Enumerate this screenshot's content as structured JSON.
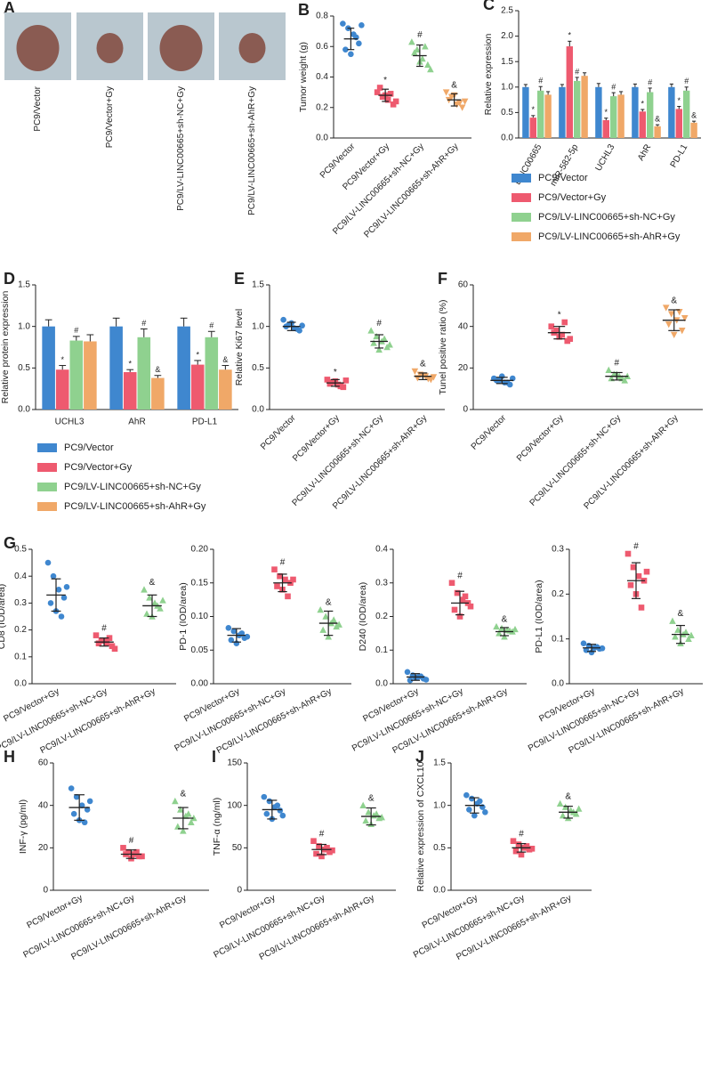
{
  "chart_data": [
    {
      "type": "photo",
      "panel": "A",
      "labels": [
        "PC9/Vector",
        "PC9/Vector+Gy",
        "PC9/LV-LINC00665+sh-NC+Gy",
        "PC9/LV-LINC00665+sh-AhR+Gy"
      ]
    },
    {
      "type": "dotplot",
      "panel": "B",
      "ylabel": "Tumor weight (g)",
      "categories": [
        "PC9/Vector",
        "PC9/Vector+Gy",
        "PC9/LV-LINC00665+sh-NC+Gy",
        "PC9/LV-LINC00665+sh-AhR+Gy"
      ],
      "colors": [
        "#3f87cf",
        "#ee5a6f",
        "#8fd18f",
        "#f0a868"
      ],
      "markers": [
        "circle",
        "square",
        "triangle",
        "triangle-down"
      ],
      "points": [
        [
          0.75,
          0.72,
          0.68,
          0.62,
          0.58,
          0.55,
          0.66,
          0.74
        ],
        [
          0.3,
          0.27,
          0.25,
          0.22,
          0.33,
          0.28,
          0.29,
          0.24
        ],
        [
          0.63,
          0.58,
          0.52,
          0.48,
          0.56,
          0.5,
          0.6,
          0.45
        ],
        [
          0.3,
          0.27,
          0.22,
          0.2,
          0.25,
          0.28,
          0.23,
          0.24
        ]
      ],
      "means": [
        0.65,
        0.28,
        0.54,
        0.25
      ],
      "sds": [
        0.07,
        0.04,
        0.07,
        0.04
      ],
      "annotations": [
        null,
        "*",
        "#",
        "&"
      ],
      "ylim": [
        0,
        0.8
      ],
      "yticks": [
        {
          "value": 0,
          "label": "0.0"
        },
        0.2,
        0.4,
        0.6,
        0.8
      ]
    },
    {
      "type": "bar",
      "panel": "C",
      "ylabel": "Relative expression",
      "categories": [
        "LINC00665",
        "miR-582-5p",
        "UCHL3",
        "AhR",
        "PD-L1"
      ],
      "series": [
        {
          "name": "PC9/Vector",
          "color": "#3f87cf",
          "values": [
            1.0,
            1.0,
            1.0,
            1.0,
            1.0
          ],
          "errors": [
            0.05,
            0.05,
            0.07,
            0.06,
            0.06
          ],
          "annotations": [
            null,
            null,
            null,
            null,
            null
          ]
        },
        {
          "name": "PC9/Vector+Gy",
          "color": "#ee5a6f",
          "values": [
            0.4,
            1.8,
            0.35,
            0.52,
            0.57
          ],
          "errors": [
            0.04,
            0.1,
            0.04,
            0.04,
            0.05
          ],
          "annotations": [
            "*",
            "*",
            "*",
            "*",
            "*"
          ]
        },
        {
          "name": "PC9/LV-LINC00665+sh-NC+Gy",
          "color": "#8fd18f",
          "values": [
            0.93,
            1.12,
            0.82,
            0.9,
            0.93
          ],
          "errors": [
            0.08,
            0.07,
            0.07,
            0.08,
            0.07
          ],
          "annotations": [
            "#",
            "#",
            "#",
            "#",
            "#"
          ]
        },
        {
          "name": "PC9/LV-LINC00665+sh-AhR+Gy",
          "color": "#f0a868",
          "values": [
            0.85,
            1.22,
            0.85,
            0.23,
            0.3
          ],
          "errors": [
            0.06,
            0.06,
            0.06,
            0.03,
            0.03
          ],
          "annotations": [
            null,
            null,
            null,
            "&",
            "&"
          ]
        }
      ],
      "ylim": [
        0,
        2.5
      ],
      "yticks": [
        {
          "value": 0,
          "label": "0.0"
        },
        0.5,
        {
          "value": 1,
          "label": "1.0"
        },
        1.5,
        {
          "value": 2,
          "label": "2.0"
        },
        2.5
      ],
      "legend": "below"
    },
    {
      "type": "bar",
      "panel": "D",
      "ylabel": "Relative protein expression",
      "categories": [
        "UCHL3",
        "AhR",
        "PD-L1"
      ],
      "series": [
        {
          "name": "PC9/Vector",
          "color": "#3f87cf",
          "values": [
            1.0,
            1.0,
            1.0
          ],
          "errors": [
            0.08,
            0.1,
            0.1
          ],
          "annotations": [
            null,
            null,
            null
          ]
        },
        {
          "name": "PC9/Vector+Gy",
          "color": "#ee5a6f",
          "values": [
            0.48,
            0.45,
            0.54
          ],
          "errors": [
            0.05,
            0.03,
            0.05
          ],
          "annotations": [
            "*",
            "*",
            "*"
          ]
        },
        {
          "name": "PC9/LV-LINC00665+sh-NC+Gy",
          "color": "#8fd18f",
          "values": [
            0.83,
            0.87,
            0.87
          ],
          "errors": [
            0.05,
            0.1,
            0.07
          ],
          "annotations": [
            "#",
            "#",
            "#"
          ]
        },
        {
          "name": "PC9/LV-LINC00665+sh-AhR+Gy",
          "color": "#f0a868",
          "values": [
            0.82,
            0.38,
            0.48
          ],
          "errors": [
            0.08,
            0.03,
            0.05
          ],
          "annotations": [
            null,
            "&",
            "&"
          ]
        }
      ],
      "ylim": [
        0,
        1.5
      ],
      "yticks": [
        {
          "value": 0,
          "label": "0.0"
        },
        0.5,
        {
          "value": 1,
          "label": "1.0"
        },
        1.5
      ],
      "legend": "below"
    },
    {
      "type": "dotplot",
      "panel": "E",
      "ylabel": "Relative Ki67 level",
      "categories": [
        "PC9/Vector",
        "PC9/Vector+Gy",
        "PC9/LV-LINC00665+sh-NC+Gy",
        "PC9/LV-LINC00665+sh-AhR+Gy"
      ],
      "colors": [
        "#3f87cf",
        "#ee5a6f",
        "#8fd18f",
        "#f0a868"
      ],
      "markers": [
        "circle",
        "square",
        "triangle",
        "triangle-down"
      ],
      "points": [
        [
          1.08,
          1.02,
          0.98,
          0.95,
          1.0,
          1.04,
          0.97,
          1.01
        ],
        [
          0.36,
          0.33,
          0.3,
          0.27,
          0.31,
          0.34,
          0.28,
          0.35
        ],
        [
          0.95,
          0.88,
          0.82,
          0.75,
          0.8,
          0.72,
          0.85,
          0.78
        ],
        [
          0.46,
          0.42,
          0.4,
          0.36,
          0.38,
          0.41,
          0.37,
          0.39
        ]
      ],
      "means": [
        1.0,
        0.32,
        0.82,
        0.4
      ],
      "sds": [
        0.05,
        0.04,
        0.08,
        0.04
      ],
      "annotations": [
        null,
        "*",
        "#",
        "&"
      ],
      "ylim": [
        0,
        1.5
      ],
      "yticks": [
        {
          "value": 0,
          "label": "0.0"
        },
        0.5,
        {
          "value": 1,
          "label": "1.0"
        },
        1.5
      ]
    },
    {
      "type": "dotplot",
      "panel": "F",
      "ylabel": "Tunel positive ratio (%)",
      "categories": [
        "PC9/Vector",
        "PC9/Vector+Gy",
        "PC9/LV-LINC00665+sh-NC+Gy",
        "PC9/LV-LINC00665+sh-AhR+Gy"
      ],
      "colors": [
        "#3f87cf",
        "#ee5a6f",
        "#8fd18f",
        "#f0a868"
      ],
      "markers": [
        "circle",
        "square",
        "triangle",
        "triangle-down"
      ],
      "points": [
        [
          15,
          14,
          13,
          12,
          14,
          16,
          13,
          15
        ],
        [
          40,
          38,
          36,
          33,
          37,
          35,
          42,
          34
        ],
        [
          19,
          17,
          16,
          14,
          15,
          17,
          15,
          16
        ],
        [
          49,
          46,
          43,
          38,
          41,
          36,
          47,
          44
        ]
      ],
      "means": [
        14,
        37,
        16,
        43
      ],
      "sds": [
        1.5,
        3,
        1.8,
        5
      ],
      "annotations": [
        null,
        "*",
        "#",
        "&"
      ],
      "ylim": [
        0,
        60
      ],
      "yticks": [
        0,
        20,
        40,
        60
      ]
    },
    {
      "type": "dotplot",
      "panel": "G",
      "ylabel": "CD8 (IOD/area)",
      "categories": [
        "PC9/Vector+Gy",
        "PC9/LV-LINC00665+sh-NC+Gy",
        "PC9/LV-LINC00665+sh-AhR+Gy"
      ],
      "colors": [
        "#3f87cf",
        "#ee5a6f",
        "#8fd18f"
      ],
      "markers": [
        "circle",
        "square",
        "triangle"
      ],
      "points": [
        [
          0.45,
          0.4,
          0.35,
          0.32,
          0.3,
          0.27,
          0.25,
          0.36
        ],
        [
          0.18,
          0.16,
          0.15,
          0.14,
          0.15,
          0.16,
          0.17,
          0.13
        ],
        [
          0.35,
          0.32,
          0.3,
          0.28,
          0.26,
          0.25,
          0.29,
          0.31
        ]
      ],
      "means": [
        0.33,
        0.155,
        0.29
      ],
      "sds": [
        0.06,
        0.015,
        0.04
      ],
      "annotations": [
        null,
        "#",
        "&"
      ],
      "ylim": [
        0,
        0.5
      ],
      "yticks": [
        {
          "value": 0,
          "label": "0.0"
        },
        0.1,
        0.2,
        0.3,
        0.4,
        0.5
      ]
    },
    {
      "type": "dotplot",
      "ylabel": "PD-1 (IOD/area)",
      "categories": [
        "PC9/Vector+Gy",
        "PC9/LV-LINC00665+sh-NC+Gy",
        "PC9/LV-LINC00665+sh-AhR+Gy"
      ],
      "colors": [
        "#3f87cf",
        "#ee5a6f",
        "#8fd18f"
      ],
      "markers": [
        "circle",
        "square",
        "triangle"
      ],
      "points": [
        [
          0.083,
          0.078,
          0.072,
          0.068,
          0.065,
          0.06,
          0.075,
          0.07
        ],
        [
          0.17,
          0.16,
          0.155,
          0.15,
          0.145,
          0.14,
          0.13,
          0.155
        ],
        [
          0.11,
          0.1,
          0.09,
          0.085,
          0.08,
          0.07,
          0.095,
          0.088
        ]
      ],
      "means": [
        0.072,
        0.15,
        0.09
      ],
      "sds": [
        0.01,
        0.013,
        0.018
      ],
      "annotations": [
        null,
        "#",
        "&"
      ],
      "ylim": [
        0,
        0.2
      ],
      "yticks": [
        {
          "value": 0,
          "label": "0.00"
        },
        0.05,
        {
          "value": 0.1,
          "label": "0.10"
        },
        0.15,
        {
          "value": 0.2,
          "label": "0.20"
        }
      ]
    },
    {
      "type": "dotplot",
      "ylabel": "D240 (IOD/area)",
      "categories": [
        "PC9/Vector+Gy",
        "PC9/LV-LINC00665+sh-NC+Gy",
        "PC9/LV-LINC00665+sh-AhR+Gy"
      ],
      "colors": [
        "#3f87cf",
        "#ee5a6f",
        "#8fd18f"
      ],
      "markers": [
        "circle",
        "square",
        "triangle"
      ],
      "points": [
        [
          0.035,
          0.025,
          0.02,
          0.015,
          0.01,
          0.018,
          0.022,
          0.012
        ],
        [
          0.3,
          0.27,
          0.25,
          0.24,
          0.22,
          0.2,
          0.26,
          0.23
        ],
        [
          0.17,
          0.165,
          0.16,
          0.155,
          0.15,
          0.14,
          0.158,
          0.162
        ]
      ],
      "means": [
        0.02,
        0.24,
        0.155
      ],
      "sds": [
        0.01,
        0.035,
        0.012
      ],
      "annotations": [
        null,
        "#",
        "&"
      ],
      "ylim": [
        0,
        0.4
      ],
      "yticks": [
        {
          "value": 0,
          "label": "0.0"
        },
        0.1,
        0.2,
        0.3,
        0.4
      ]
    },
    {
      "type": "dotplot",
      "ylabel": "PD-L1 (IOD/area)",
      "categories": [
        "PC9/Vector+Gy",
        "PC9/LV-LINC00665+sh-NC+Gy",
        "PC9/LV-LINC00665+sh-AhR+Gy"
      ],
      "colors": [
        "#3f87cf",
        "#ee5a6f",
        "#8fd18f"
      ],
      "markers": [
        "circle",
        "square",
        "triangle"
      ],
      "points": [
        [
          0.09,
          0.085,
          0.08,
          0.078,
          0.075,
          0.07,
          0.082,
          0.079
        ],
        [
          0.29,
          0.26,
          0.24,
          0.23,
          0.22,
          0.2,
          0.17,
          0.25
        ],
        [
          0.14,
          0.12,
          0.11,
          0.1,
          0.105,
          0.09,
          0.115,
          0.108
        ]
      ],
      "means": [
        0.08,
        0.23,
        0.11
      ],
      "sds": [
        0.008,
        0.04,
        0.02
      ],
      "annotations": [
        null,
        "#",
        "&"
      ],
      "ylim": [
        0,
        0.3
      ],
      "yticks": [
        {
          "value": 0,
          "label": "0.0"
        },
        0.1,
        0.2,
        0.3
      ]
    },
    {
      "type": "dotplot",
      "panel": "H",
      "ylabel": "INF-γ (pg/ml)",
      "categories": [
        "PC9/Vector+Gy",
        "PC9/LV-LINC00665+sh-NC+Gy",
        "PC9/LV-LINC00665+sh-AhR+Gy"
      ],
      "colors": [
        "#3f87cf",
        "#ee5a6f",
        "#8fd18f"
      ],
      "markers": [
        "circle",
        "square",
        "triangle"
      ],
      "points": [
        [
          48,
          44,
          40,
          38,
          36,
          33,
          32,
          42
        ],
        [
          20,
          18,
          17,
          16,
          17,
          15,
          18,
          16
        ],
        [
          42,
          38,
          35,
          32,
          30,
          28,
          36,
          34
        ]
      ],
      "means": [
        39,
        17,
        34
      ],
      "sds": [
        6,
        2,
        5
      ],
      "annotations": [
        null,
        "#",
        "&"
      ],
      "ylim": [
        0,
        60
      ],
      "yticks": [
        0,
        20,
        40,
        60
      ]
    },
    {
      "type": "dotplot",
      "panel": "I",
      "ylabel": "TNF-α (ng/ml)",
      "categories": [
        "PC9/Vector+Gy",
        "PC9/LV-LINC00665+sh-NC+Gy",
        "PC9/LV-LINC00665+sh-AhR+Gy"
      ],
      "colors": [
        "#3f87cf",
        "#ee5a6f",
        "#8fd18f"
      ],
      "markers": [
        "circle",
        "square",
        "triangle"
      ],
      "points": [
        [
          110,
          105,
          98,
          94,
          90,
          84,
          100,
          88
        ],
        [
          58,
          52,
          48,
          45,
          43,
          40,
          50,
          47
        ],
        [
          100,
          92,
          88,
          85,
          82,
          78,
          90,
          86
        ]
      ],
      "means": [
        95,
        48,
        87
      ],
      "sds": [
        11,
        6,
        10
      ],
      "annotations": [
        null,
        "#",
        "&"
      ],
      "ylim": [
        0,
        150
      ],
      "yticks": [
        0,
        50,
        100,
        150
      ]
    },
    {
      "type": "dotplot",
      "panel": "J",
      "ylabel": "Relative expression of CXCL10",
      "categories": [
        "PC9/Vector+Gy",
        "PC9/LV-LINC00665+sh-NC+Gy",
        "PC9/LV-LINC00665+sh-AhR+Gy"
      ],
      "colors": [
        "#3f87cf",
        "#ee5a6f",
        "#8fd18f"
      ],
      "markers": [
        "circle",
        "square",
        "triangle"
      ],
      "points": [
        [
          1.12,
          1.08,
          1.02,
          0.98,
          0.95,
          0.88,
          1.05,
          0.92
        ],
        [
          0.58,
          0.54,
          0.5,
          0.48,
          0.46,
          0.42,
          0.52,
          0.49
        ],
        [
          1.02,
          0.98,
          0.94,
          0.9,
          0.88,
          0.85,
          0.92,
          0.96
        ]
      ],
      "means": [
        1.0,
        0.5,
        0.92
      ],
      "sds": [
        0.09,
        0.05,
        0.07
      ],
      "annotations": [
        null,
        "#",
        "&"
      ],
      "ylim": [
        0,
        1.5
      ],
      "yticks": [
        {
          "value": 0,
          "label": "0.0"
        },
        0.5,
        {
          "value": 1,
          "label": "1.0"
        },
        1.5
      ]
    }
  ]
}
